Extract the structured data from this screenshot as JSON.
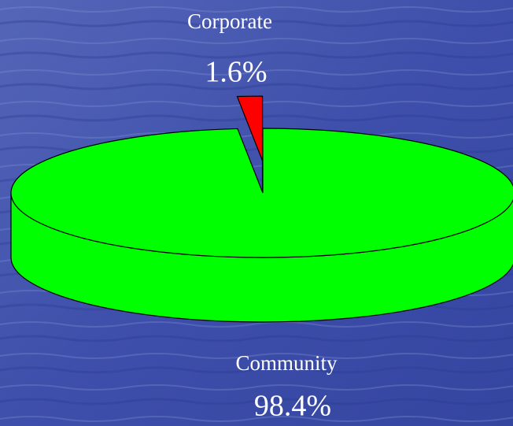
{
  "chart_data": {
    "type": "pie3d",
    "categories": [
      "Corporate",
      "Community"
    ],
    "values": [
      1.6,
      98.4
    ],
    "value_labels": [
      "1.6%",
      "98.4%"
    ],
    "colors": [
      "#ff0000",
      "#00ff00"
    ],
    "exploded": [
      "Corporate"
    ]
  }
}
